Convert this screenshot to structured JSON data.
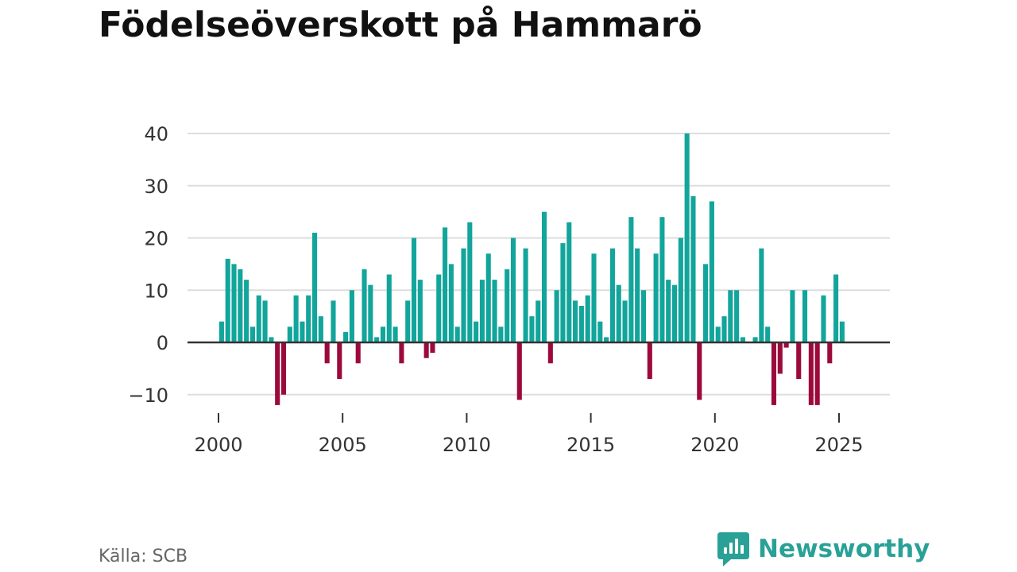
{
  "title": "Födelseöverskott på Hammarö",
  "source": "Källa: SCB",
  "brand": {
    "name": "Newsworthy",
    "icon": "newsworthy-logo-icon",
    "color": "#2aa197"
  },
  "colors": {
    "positive": "#12a59b",
    "negative": "#9c0a3c",
    "grid": "#dddddd",
    "zero": "#333333"
  },
  "chart_data": {
    "type": "bar",
    "title": "Födelseöverskott på Hammarö",
    "xlabel": "",
    "ylabel": "",
    "ylim": [
      -12,
      40
    ],
    "xlim": [
      1999.5,
      2026.5
    ],
    "y_ticks": [
      -10,
      0,
      10,
      20,
      30,
      40
    ],
    "y_tick_labels": [
      "−10",
      "0",
      "10",
      "20",
      "30",
      "40"
    ],
    "x_ticks": [
      2000,
      2005,
      2010,
      2015,
      2020,
      2025
    ],
    "x_tick_labels": [
      "2000",
      "2005",
      "2010",
      "2015",
      "2020",
      "2025"
    ],
    "grid": true,
    "legend": "none",
    "quarter_start": {
      "year": 2000,
      "quarter": 1
    },
    "values": [
      4,
      16,
      15,
      14,
      12,
      3,
      9,
      8,
      1,
      -12,
      -10,
      3,
      9,
      4,
      9,
      21,
      5,
      -4,
      8,
      -7,
      2,
      10,
      -4,
      14,
      11,
      1,
      3,
      13,
      3,
      -4,
      8,
      20,
      12,
      -3,
      -2,
      13,
      22,
      15,
      3,
      18,
      23,
      4,
      12,
      17,
      12,
      3,
      14,
      20,
      -11,
      18,
      5,
      8,
      25,
      -4,
      10,
      19,
      23,
      8,
      7,
      9,
      17,
      4,
      1,
      18,
      11,
      8,
      24,
      18,
      10,
      -7,
      17,
      24,
      12,
      11,
      20,
      40,
      28,
      -11,
      15,
      27,
      3,
      5,
      10,
      10,
      1,
      0,
      1,
      18,
      3,
      -12,
      -6,
      -1,
      10,
      -7,
      10,
      -12,
      -12,
      9,
      -4,
      13,
      4
    ]
  }
}
